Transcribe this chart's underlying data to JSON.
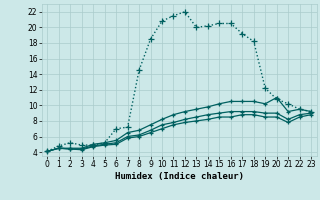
{
  "xlabel": "Humidex (Indice chaleur)",
  "bg_color": "#cce8e8",
  "grid_color": "#aacccc",
  "line_color": "#006060",
  "xlim": [
    -0.5,
    23.5
  ],
  "ylim": [
    3.5,
    23
  ],
  "xticks": [
    0,
    1,
    2,
    3,
    4,
    5,
    6,
    7,
    8,
    9,
    10,
    11,
    12,
    13,
    14,
    15,
    16,
    17,
    18,
    19,
    20,
    21,
    22,
    23
  ],
  "yticks": [
    4,
    6,
    8,
    10,
    12,
    14,
    16,
    18,
    20,
    22
  ],
  "series": [
    {
      "x": [
        0,
        1,
        2,
        3,
        4,
        5,
        6,
        7,
        8,
        9,
        10,
        11,
        12,
        13,
        14,
        15,
        16,
        17,
        18,
        19,
        20,
        21,
        22,
        23
      ],
      "y": [
        4.1,
        4.8,
        5.2,
        4.9,
        4.9,
        5.2,
        7.0,
        7.2,
        14.5,
        18.5,
        20.8,
        21.5,
        22.0,
        20.0,
        20.2,
        20.5,
        20.5,
        19.2,
        18.2,
        12.2,
        10.8,
        10.2,
        9.5,
        9.2
      ],
      "linestyle": ":",
      "linewidth": 1.0,
      "marker": "+",
      "markersize": 4
    },
    {
      "x": [
        0,
        1,
        2,
        3,
        4,
        5,
        6,
        7,
        8,
        9,
        10,
        11,
        12,
        13,
        14,
        15,
        16,
        17,
        18,
        19,
        20,
        21,
        22,
        23
      ],
      "y": [
        4.1,
        4.5,
        4.5,
        4.5,
        5.0,
        5.2,
        5.5,
        6.5,
        6.8,
        7.5,
        8.2,
        8.8,
        9.2,
        9.5,
        9.8,
        10.2,
        10.5,
        10.5,
        10.5,
        10.2,
        11.0,
        9.2,
        9.5,
        9.2
      ],
      "linestyle": "-",
      "linewidth": 0.9,
      "marker": "+",
      "markersize": 3
    },
    {
      "x": [
        0,
        1,
        2,
        3,
        4,
        5,
        6,
        7,
        8,
        9,
        10,
        11,
        12,
        13,
        14,
        15,
        16,
        17,
        18,
        19,
        20,
        21,
        22,
        23
      ],
      "y": [
        4.1,
        4.5,
        4.4,
        4.4,
        4.8,
        5.0,
        5.2,
        6.0,
        6.2,
        6.8,
        7.5,
        7.8,
        8.2,
        8.5,
        8.8,
        9.0,
        9.2,
        9.2,
        9.2,
        9.0,
        9.0,
        8.2,
        8.8,
        9.0
      ],
      "linestyle": "-",
      "linewidth": 0.9,
      "marker": "+",
      "markersize": 3
    },
    {
      "x": [
        0,
        1,
        2,
        3,
        4,
        5,
        6,
        7,
        8,
        9,
        10,
        11,
        12,
        13,
        14,
        15,
        16,
        17,
        18,
        19,
        20,
        21,
        22,
        23
      ],
      "y": [
        4.1,
        4.5,
        4.4,
        4.3,
        4.7,
        4.9,
        5.0,
        5.8,
        6.0,
        6.5,
        7.0,
        7.5,
        7.8,
        8.0,
        8.2,
        8.5,
        8.5,
        8.8,
        8.8,
        8.5,
        8.5,
        7.8,
        8.5,
        8.8
      ],
      "linestyle": "-",
      "linewidth": 0.9,
      "marker": "+",
      "markersize": 3
    }
  ]
}
